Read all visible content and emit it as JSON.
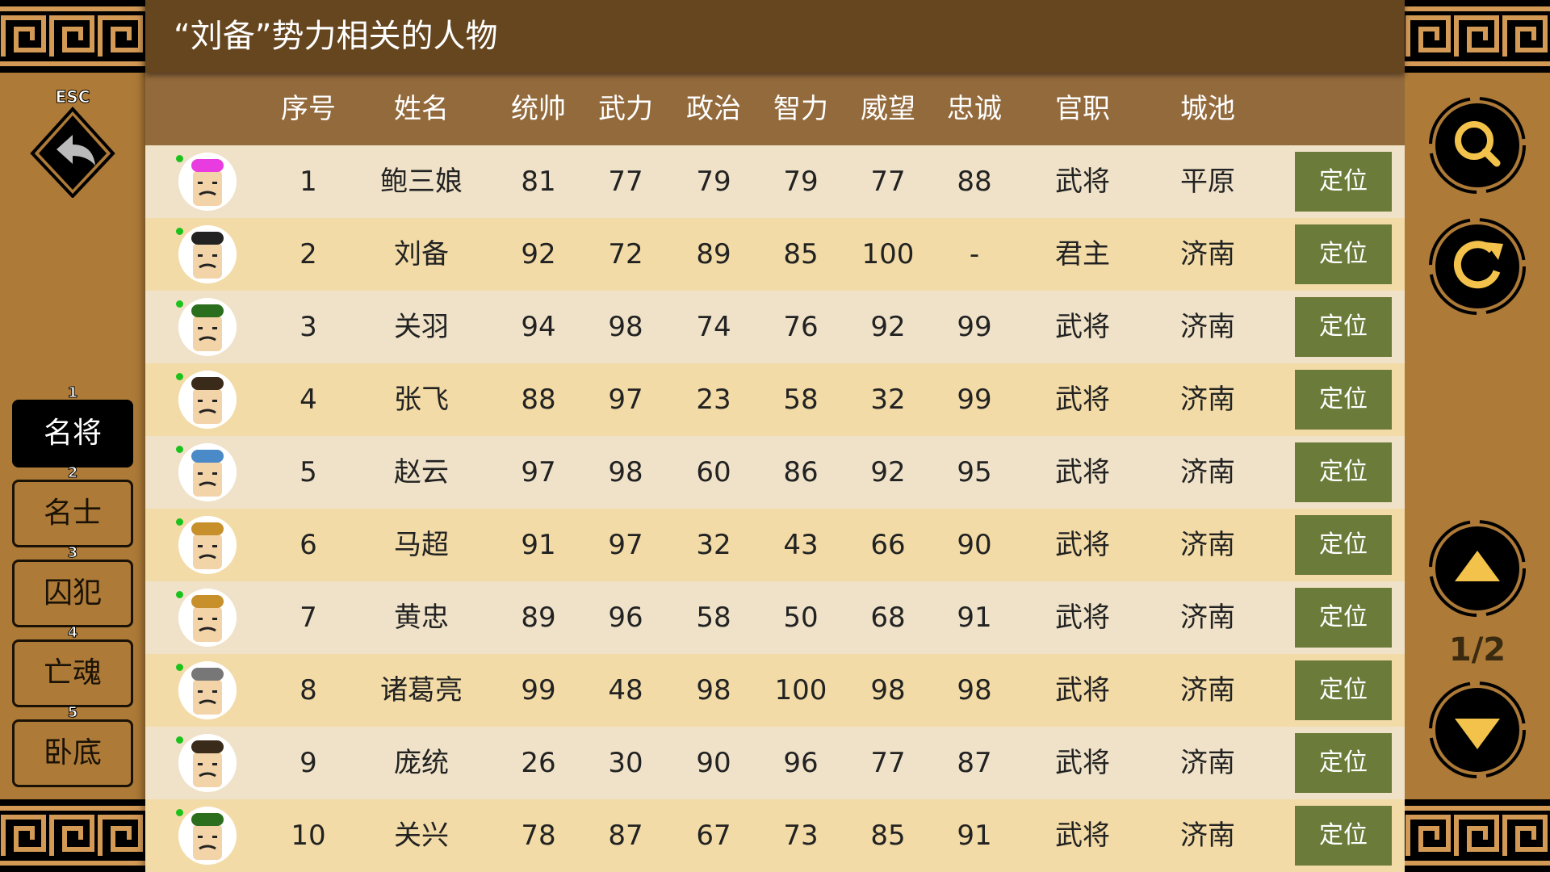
{
  "title": "“刘备”势力相关的人物",
  "colors": {
    "title_bar": "#66461f",
    "header": "#936a3c",
    "row_odd": "#efe2c8",
    "row_even": "#f2dba6",
    "locate_button": "#6b7b39",
    "sidebar": "#ad7a37",
    "icon_gold": "#f2c24a",
    "online_dot": "#1cc21c"
  },
  "esc": {
    "label": "ESC",
    "icon": "back-arrow-icon"
  },
  "tabs": [
    {
      "num": "1",
      "label": "名将",
      "active": true
    },
    {
      "num": "2",
      "label": "名士"
    },
    {
      "num": "3",
      "label": "囚犯"
    },
    {
      "num": "4",
      "label": "亡魂"
    },
    {
      "num": "5",
      "label": "卧底"
    }
  ],
  "columns": [
    "序号",
    "姓名",
    "统帅",
    "武力",
    "政治",
    "智力",
    "威望",
    "忠诚",
    "官职",
    "城池"
  ],
  "locate_label": "定位",
  "rows": [
    [
      "1",
      "鲍三娘",
      "81",
      "77",
      "79",
      "79",
      "77",
      "88",
      "武将",
      "平原"
    ],
    [
      "2",
      "刘备",
      "92",
      "72",
      "89",
      "85",
      "100",
      "-",
      "君主",
      "济南"
    ],
    [
      "3",
      "关羽",
      "94",
      "98",
      "74",
      "76",
      "92",
      "99",
      "武将",
      "济南"
    ],
    [
      "4",
      "张飞",
      "88",
      "97",
      "23",
      "58",
      "32",
      "99",
      "武将",
      "济南"
    ],
    [
      "5",
      "赵云",
      "97",
      "98",
      "60",
      "86",
      "92",
      "95",
      "武将",
      "济南"
    ],
    [
      "6",
      "马超",
      "91",
      "97",
      "32",
      "43",
      "66",
      "90",
      "武将",
      "济南"
    ],
    [
      "7",
      "黄忠",
      "89",
      "96",
      "58",
      "50",
      "68",
      "91",
      "武将",
      "济南"
    ],
    [
      "8",
      "诸葛亮",
      "99",
      "48",
      "98",
      "100",
      "98",
      "98",
      "武将",
      "济南"
    ],
    [
      "9",
      "庞统",
      "26",
      "30",
      "90",
      "96",
      "77",
      "87",
      "武将",
      "济南"
    ],
    [
      "10",
      "关兴",
      "78",
      "87",
      "67",
      "73",
      "85",
      "91",
      "武将",
      "济南"
    ]
  ],
  "avatar_hats": [
    "#e83be0",
    "#222",
    "#2a6e1e",
    "#3a2a1a",
    "#4a8ac8",
    "#c8902a",
    "#c8902a",
    "#777",
    "#3a2a1a",
    "#2a6e1e"
  ],
  "right_buttons": {
    "search": "search-icon",
    "refresh": "refresh-icon",
    "up": "arrow-up-icon",
    "down": "arrow-down-icon"
  },
  "page": "1/2"
}
